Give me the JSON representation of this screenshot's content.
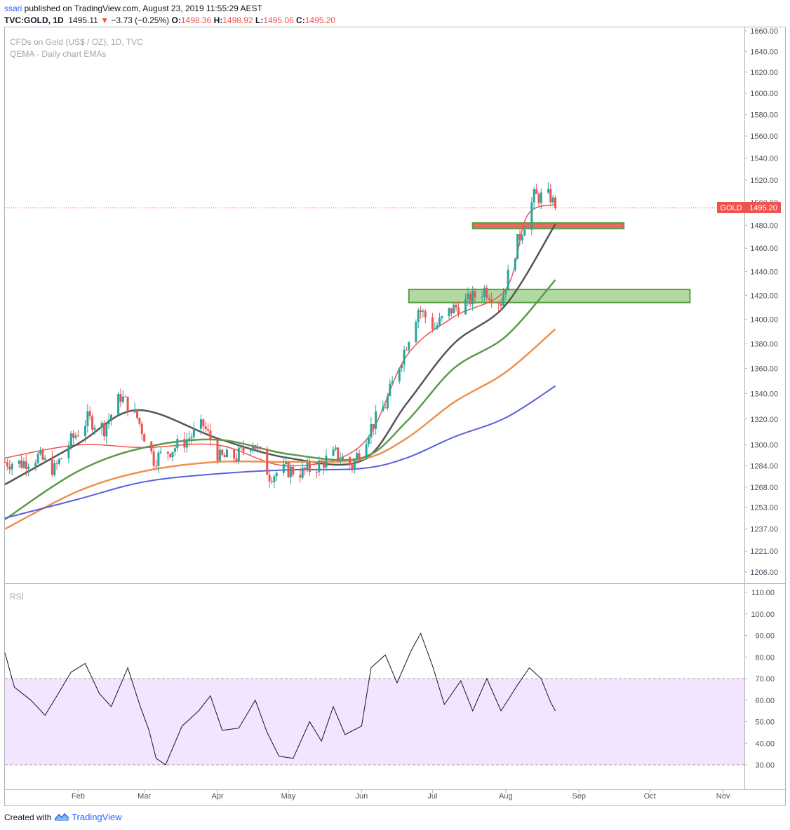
{
  "header": {
    "user": "ssari",
    "published_text": " published on TradingView.com, August 23, 2019 11:55:29 AEST",
    "symbol": "TVC:GOLD, 1D",
    "last": "1495.11",
    "change": "−3.73 (−0.25%)",
    "o_label": "O:",
    "o_val": "1498.36",
    "h_label": "H:",
    "h_val": "1498.92",
    "l_label": "L:",
    "l_val": "1495.06",
    "c_label": "C:",
    "c_val": "1495.20"
  },
  "legend": {
    "title": "CFDs on Gold (US$ / OZ), 1D, TVC",
    "study": "QEMA - Daily chart EMAs",
    "rsi": "RSI"
  },
  "price_label": {
    "name": "GOLD",
    "value": "1495.20"
  },
  "footer": {
    "created": "Created with",
    "brand": "TradingView"
  },
  "colors": {
    "up": "#26a69a",
    "down": "#ef5350",
    "ema_red": "#ef5350",
    "ema_black": "#555555",
    "ema_green": "#5c9a4a",
    "ema_orange": "#f0904d",
    "ema_blue": "#5a5fe0",
    "rsi_band": "#f3e5fd",
    "zone_red": "#e66a5e",
    "zone_green": "#9fcf8b"
  },
  "chart_data": [
    {
      "type": "candlestick",
      "title": "CFDs on Gold (US$ / OZ), 1D, TVC",
      "x_axis_labels": [
        "Feb",
        "Mar",
        "Apr",
        "May",
        "Jun",
        "Jul",
        "Aug",
        "Sep",
        "Oct",
        "Nov"
      ],
      "x_axis_label_dates": [
        "2019-02-01",
        "2019-03-01",
        "2019-04-01",
        "2019-05-01",
        "2019-06-01",
        "2019-07-01",
        "2019-08-01",
        "2019-09-01",
        "2019-10-01",
        "2019-11-01"
      ],
      "y_ticks": [
        1206,
        1221,
        1237,
        1253,
        1268,
        1284,
        1300,
        1320,
        1340,
        1360,
        1380,
        1400,
        1420,
        1440,
        1460,
        1480,
        1500,
        1520,
        1540,
        1560,
        1580,
        1600,
        1620,
        1640,
        1660
      ],
      "y_tick_labels": [
        "1206.00",
        "1221.00",
        "1237.00",
        "1253.00",
        "1268.00",
        "1284.00",
        "1300.00",
        "1320.00",
        "1340.00",
        "1360.00",
        "1380.00",
        "1400.00",
        "1420.00",
        "1440.00",
        "1460.00",
        "1480.00",
        "1500.00",
        "1520.00",
        "1540.00",
        "1560.00",
        "1580.00",
        "1600.00",
        "1620.00",
        "1640.00",
        "1660.00"
      ],
      "log_scale": true,
      "last_price": 1495.2,
      "close_series": [
        [
          "2019-01-01",
          1287
        ],
        [
          "2019-01-08",
          1286
        ],
        [
          "2019-01-15",
          1291
        ],
        [
          "2019-01-22",
          1281
        ],
        [
          "2019-01-29",
          1303
        ],
        [
          "2019-02-05",
          1320
        ],
        [
          "2019-02-12",
          1313
        ],
        [
          "2019-02-19",
          1338
        ],
        [
          "2019-02-26",
          1321
        ],
        [
          "2019-03-05",
          1289
        ],
        [
          "2019-03-12",
          1296
        ],
        [
          "2019-03-19",
          1304
        ],
        [
          "2019-03-26",
          1315
        ],
        [
          "2019-04-02",
          1290
        ],
        [
          "2019-04-09",
          1291
        ],
        [
          "2019-04-16",
          1303
        ],
        [
          "2019-04-23",
          1277
        ],
        [
          "2019-04-30",
          1281
        ],
        [
          "2019-05-07",
          1279
        ],
        [
          "2019-05-14",
          1285
        ],
        [
          "2019-05-21",
          1293
        ],
        [
          "2019-05-28",
          1284
        ],
        [
          "2019-06-04",
          1311
        ],
        [
          "2019-06-11",
          1331
        ],
        [
          "2019-06-18",
          1369
        ],
        [
          "2019-06-25",
          1409
        ],
        [
          "2019-07-02",
          1393
        ],
        [
          "2019-07-09",
          1408
        ],
        [
          "2019-07-16",
          1415
        ],
        [
          "2019-07-23",
          1425
        ],
        [
          "2019-07-30",
          1415
        ],
        [
          "2019-08-06",
          1465
        ],
        [
          "2019-08-13",
          1505
        ],
        [
          "2019-08-20",
          1505
        ],
        [
          "2019-08-22",
          1495.2
        ]
      ],
      "ema_series": [
        {
          "color": "#ef5350",
          "points": [
            [
              "2019-01-01",
              1290
            ],
            [
              "2019-02-01",
              1300
            ],
            [
              "2019-03-01",
              1298
            ],
            [
              "2019-04-01",
              1300
            ],
            [
              "2019-05-01",
              1284
            ],
            [
              "2019-06-01",
              1300
            ],
            [
              "2019-06-20",
              1370
            ],
            [
              "2019-07-10",
              1402
            ],
            [
              "2019-08-01",
              1425
            ],
            [
              "2019-08-10",
              1488
            ],
            [
              "2019-08-22",
              1498
            ]
          ]
        },
        {
          "color": "#555555",
          "points": [
            [
              "2019-01-01",
              1270
            ],
            [
              "2019-02-01",
              1301
            ],
            [
              "2019-02-26",
              1327
            ],
            [
              "2019-04-01",
              1305
            ],
            [
              "2019-05-01",
              1290
            ],
            [
              "2019-06-01",
              1288
            ],
            [
              "2019-06-20",
              1332
            ],
            [
              "2019-07-10",
              1380
            ],
            [
              "2019-08-01",
              1412
            ],
            [
              "2019-08-22",
              1481
            ]
          ]
        },
        {
          "color": "#5c9a4a",
          "points": [
            [
              "2019-01-01",
              1244
            ],
            [
              "2019-02-01",
              1280
            ],
            [
              "2019-03-01",
              1298
            ],
            [
              "2019-04-01",
              1304
            ],
            [
              "2019-05-01",
              1293
            ],
            [
              "2019-06-01",
              1290
            ],
            [
              "2019-06-20",
              1318
            ],
            [
              "2019-07-10",
              1360
            ],
            [
              "2019-08-01",
              1386
            ],
            [
              "2019-08-22",
              1433
            ]
          ]
        },
        {
          "color": "#f0904d",
          "points": [
            [
              "2019-01-01",
              1237
            ],
            [
              "2019-02-01",
              1265
            ],
            [
              "2019-03-01",
              1280
            ],
            [
              "2019-04-01",
              1287
            ],
            [
              "2019-05-01",
              1287
            ],
            [
              "2019-06-01",
              1289
            ],
            [
              "2019-06-20",
              1305
            ],
            [
              "2019-07-10",
              1333
            ],
            [
              "2019-08-01",
              1357
            ],
            [
              "2019-08-22",
              1392
            ]
          ]
        },
        {
          "color": "#5a5fe0",
          "points": [
            [
              "2019-01-01",
              1245
            ],
            [
              "2019-02-01",
              1259
            ],
            [
              "2019-03-01",
              1272
            ],
            [
              "2019-04-01",
              1278
            ],
            [
              "2019-05-01",
              1281
            ],
            [
              "2019-06-01",
              1282
            ],
            [
              "2019-06-20",
              1290
            ],
            [
              "2019-07-10",
              1306
            ],
            [
              "2019-08-01",
              1321
            ],
            [
              "2019-08-22",
              1346
            ]
          ]
        }
      ],
      "zones": [
        {
          "color": "#e66a5e",
          "from": "2019-07-18",
          "to": "2019-09-20",
          "low": 1477,
          "high": 1482
        },
        {
          "color": "#9fcf8b",
          "from": "2019-06-21",
          "to": "2019-10-18",
          "low": 1414,
          "high": 1425
        }
      ]
    },
    {
      "type": "line",
      "title": "RSI",
      "y_ticks": [
        30,
        40,
        50,
        60,
        70,
        80,
        90,
        100,
        110
      ],
      "y_tick_labels": [
        "30.00",
        "40.00",
        "50.00",
        "60.00",
        "70.00",
        "80.00",
        "90.00",
        "100.00",
        "110.00"
      ],
      "bands": [
        30,
        70
      ],
      "values": [
        [
          "2019-01-01",
          82
        ],
        [
          "2019-01-05",
          66
        ],
        [
          "2019-01-12",
          60
        ],
        [
          "2019-01-18",
          53
        ],
        [
          "2019-01-23",
          62
        ],
        [
          "2019-01-29",
          73
        ],
        [
          "2019-02-04",
          77
        ],
        [
          "2019-02-10",
          63
        ],
        [
          "2019-02-15",
          57
        ],
        [
          "2019-02-22",
          75
        ],
        [
          "2019-02-27",
          58
        ],
        [
          "2019-03-03",
          46
        ],
        [
          "2019-03-06",
          33
        ],
        [
          "2019-03-10",
          30
        ],
        [
          "2019-03-17",
          48
        ],
        [
          "2019-03-24",
          55
        ],
        [
          "2019-03-29",
          62
        ],
        [
          "2019-04-03",
          46
        ],
        [
          "2019-04-10",
          47
        ],
        [
          "2019-04-17",
          60
        ],
        [
          "2019-04-22",
          45
        ],
        [
          "2019-04-27",
          34
        ],
        [
          "2019-05-03",
          33
        ],
        [
          "2019-05-10",
          50
        ],
        [
          "2019-05-15",
          41
        ],
        [
          "2019-05-20",
          57
        ],
        [
          "2019-05-25",
          44
        ],
        [
          "2019-06-01",
          48
        ],
        [
          "2019-06-05",
          75
        ],
        [
          "2019-06-11",
          81
        ],
        [
          "2019-06-16",
          68
        ],
        [
          "2019-06-22",
          83
        ],
        [
          "2019-06-26",
          91
        ],
        [
          "2019-07-01",
          76
        ],
        [
          "2019-07-06",
          58
        ],
        [
          "2019-07-13",
          69
        ],
        [
          "2019-07-18",
          55
        ],
        [
          "2019-07-24",
          70
        ],
        [
          "2019-07-30",
          55
        ],
        [
          "2019-08-06",
          67
        ],
        [
          "2019-08-11",
          75
        ],
        [
          "2019-08-16",
          70
        ],
        [
          "2019-08-20",
          59
        ],
        [
          "2019-08-22",
          55
        ]
      ]
    }
  ]
}
